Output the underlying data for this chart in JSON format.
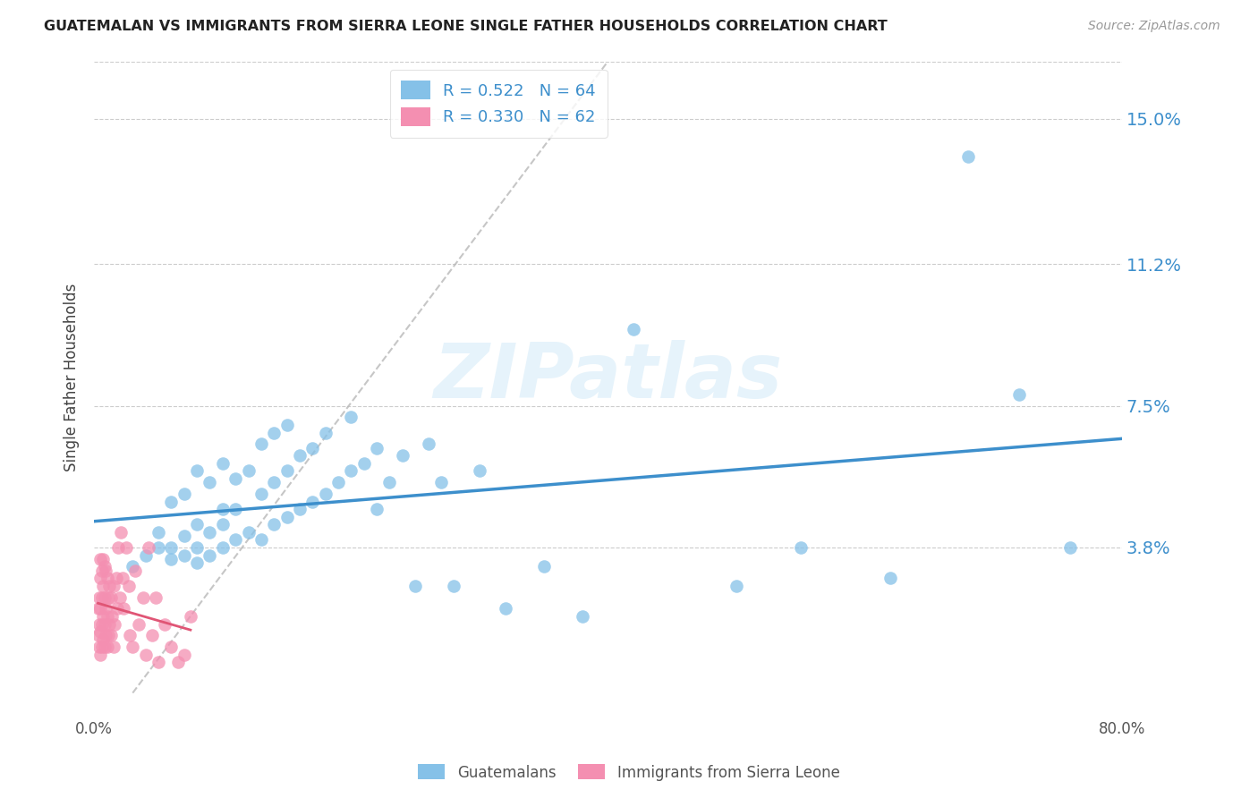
{
  "title": "GUATEMALAN VS IMMIGRANTS FROM SIERRA LEONE SINGLE FATHER HOUSEHOLDS CORRELATION CHART",
  "source": "Source: ZipAtlas.com",
  "ylabel": "Single Father Households",
  "ytick_labels": [
    "3.8%",
    "7.5%",
    "11.2%",
    "15.0%"
  ],
  "ytick_values": [
    0.038,
    0.075,
    0.112,
    0.15
  ],
  "xlim": [
    0.0,
    0.8
  ],
  "ylim": [
    0.0,
    0.165
  ],
  "background_color": "#ffffff",
  "watermark": "ZIPatlas",
  "legend_blue_r": "R = 0.522",
  "legend_blue_n": "N = 64",
  "legend_pink_r": "R = 0.330",
  "legend_pink_n": "N = 62",
  "blue_color": "#85c1e8",
  "pink_color": "#f48fb1",
  "line_blue": "#3d8fcc",
  "line_pink": "#e05575",
  "grid_color": "#cccccc",
  "blue_scatter_x": [
    0.03,
    0.04,
    0.05,
    0.05,
    0.06,
    0.06,
    0.06,
    0.07,
    0.07,
    0.07,
    0.08,
    0.08,
    0.08,
    0.08,
    0.09,
    0.09,
    0.09,
    0.1,
    0.1,
    0.1,
    0.1,
    0.11,
    0.11,
    0.11,
    0.12,
    0.12,
    0.13,
    0.13,
    0.13,
    0.14,
    0.14,
    0.14,
    0.15,
    0.15,
    0.15,
    0.16,
    0.16,
    0.17,
    0.17,
    0.18,
    0.18,
    0.19,
    0.2,
    0.2,
    0.21,
    0.22,
    0.22,
    0.23,
    0.24,
    0.25,
    0.26,
    0.27,
    0.28,
    0.3,
    0.32,
    0.35,
    0.38,
    0.42,
    0.5,
    0.55,
    0.62,
    0.68,
    0.72,
    0.76
  ],
  "blue_scatter_y": [
    0.033,
    0.036,
    0.038,
    0.042,
    0.035,
    0.038,
    0.05,
    0.036,
    0.041,
    0.052,
    0.034,
    0.038,
    0.044,
    0.058,
    0.036,
    0.042,
    0.055,
    0.038,
    0.044,
    0.048,
    0.06,
    0.04,
    0.048,
    0.056,
    0.042,
    0.058,
    0.04,
    0.052,
    0.065,
    0.044,
    0.055,
    0.068,
    0.046,
    0.058,
    0.07,
    0.048,
    0.062,
    0.05,
    0.064,
    0.052,
    0.068,
    0.055,
    0.058,
    0.072,
    0.06,
    0.048,
    0.064,
    0.055,
    0.062,
    0.028,
    0.065,
    0.055,
    0.028,
    0.058,
    0.022,
    0.033,
    0.02,
    0.095,
    0.028,
    0.038,
    0.03,
    0.14,
    0.078,
    0.038
  ],
  "pink_scatter_x": [
    0.003,
    0.003,
    0.004,
    0.004,
    0.004,
    0.005,
    0.005,
    0.005,
    0.005,
    0.005,
    0.006,
    0.006,
    0.006,
    0.006,
    0.007,
    0.007,
    0.007,
    0.007,
    0.008,
    0.008,
    0.008,
    0.008,
    0.009,
    0.009,
    0.009,
    0.01,
    0.01,
    0.01,
    0.011,
    0.011,
    0.012,
    0.012,
    0.013,
    0.013,
    0.014,
    0.015,
    0.015,
    0.016,
    0.017,
    0.018,
    0.019,
    0.02,
    0.021,
    0.022,
    0.023,
    0.025,
    0.027,
    0.028,
    0.03,
    0.032,
    0.035,
    0.038,
    0.04,
    0.042,
    0.045,
    0.048,
    0.05,
    0.055,
    0.06,
    0.065,
    0.07,
    0.075
  ],
  "pink_scatter_y": [
    0.015,
    0.022,
    0.012,
    0.018,
    0.025,
    0.01,
    0.016,
    0.022,
    0.03,
    0.035,
    0.012,
    0.018,
    0.025,
    0.032,
    0.014,
    0.02,
    0.028,
    0.035,
    0.012,
    0.018,
    0.025,
    0.033,
    0.015,
    0.022,
    0.032,
    0.012,
    0.02,
    0.03,
    0.015,
    0.025,
    0.018,
    0.028,
    0.015,
    0.025,
    0.02,
    0.012,
    0.028,
    0.018,
    0.03,
    0.022,
    0.038,
    0.025,
    0.042,
    0.03,
    0.022,
    0.038,
    0.028,
    0.015,
    0.012,
    0.032,
    0.018,
    0.025,
    0.01,
    0.038,
    0.015,
    0.025,
    0.008,
    0.018,
    0.012,
    0.008,
    0.01,
    0.02
  ],
  "blue_line_x": [
    0.03,
    0.76
  ],
  "pink_line_x": [
    0.003,
    0.075
  ],
  "gray_line": [
    [
      0.03,
      0.0
    ],
    [
      0.4,
      0.165
    ]
  ]
}
